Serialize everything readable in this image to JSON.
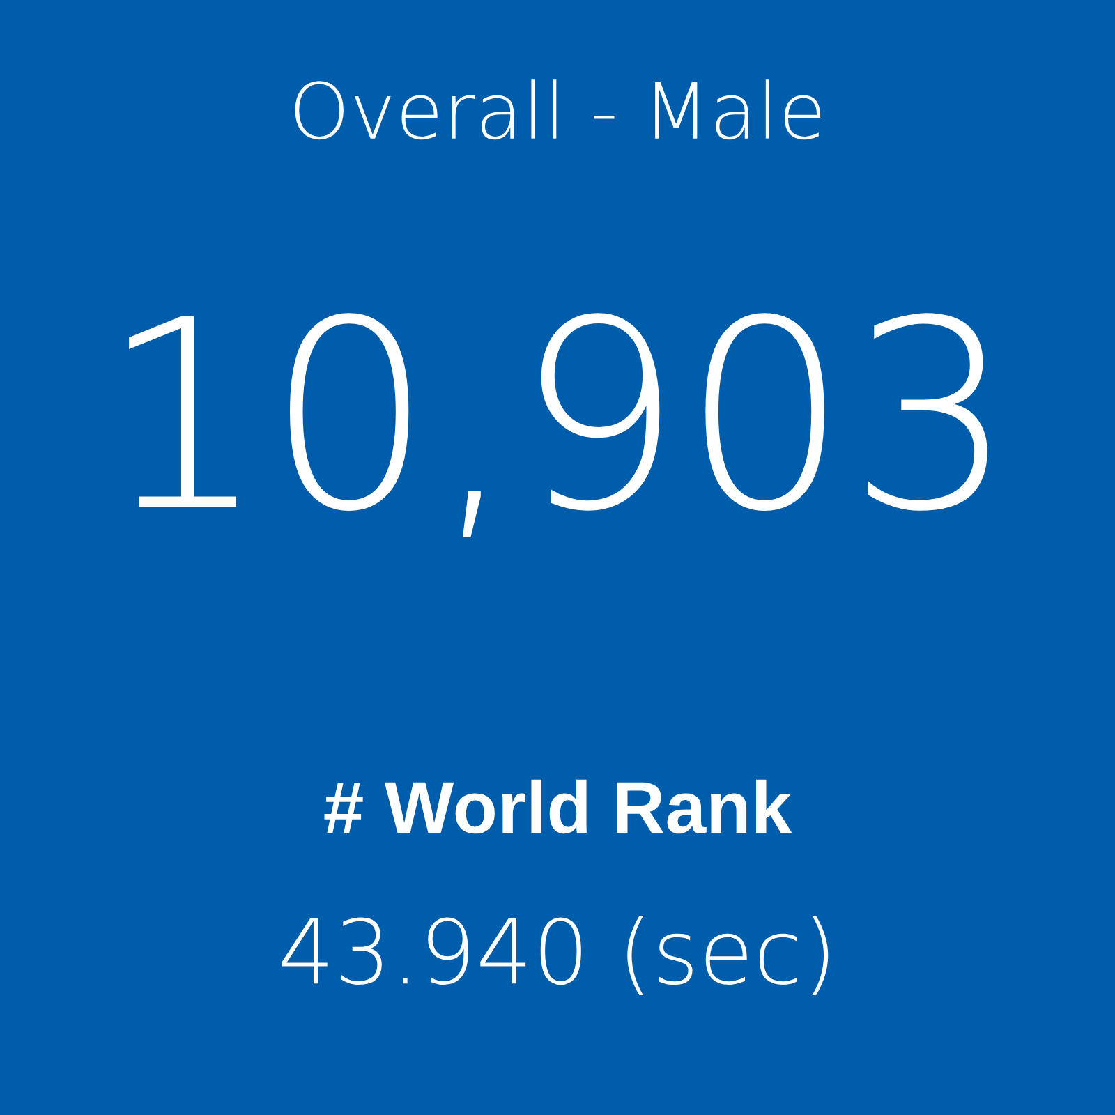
{
  "chart_data": {
    "type": "other",
    "title": "Overall - Male",
    "values": [
      10903
    ],
    "value_labels": [
      "10,903"
    ],
    "annotations": [
      "# World Rank",
      "43.940 (sec)"
    ]
  }
}
